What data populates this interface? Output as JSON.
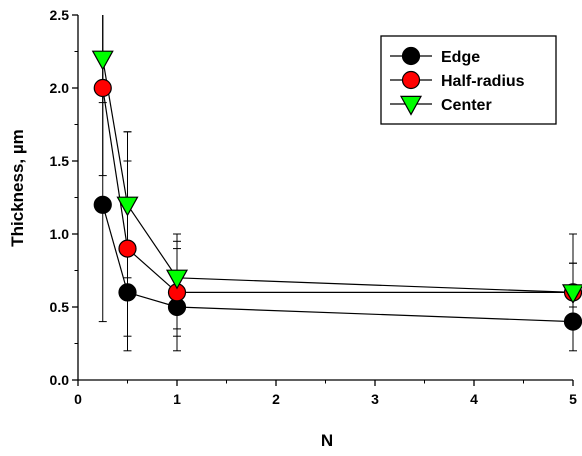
{
  "chart_data": {
    "type": "scatter",
    "title": "",
    "xlabel": "N",
    "ylabel": "Thickness, µm",
    "xlim": [
      0,
      5
    ],
    "ylim": [
      0,
      2.5
    ],
    "xticks": [
      0,
      1,
      2,
      3,
      4,
      5
    ],
    "xtick_labels": [
      "0",
      "1",
      "2",
      "3",
      "4",
      "5"
    ],
    "yticks": [
      0,
      0.5,
      1.0,
      1.5,
      2.0,
      2.5
    ],
    "ytick_labels": [
      "0.0",
      "0.5",
      "1.0",
      "1.5",
      "2.0",
      "2.5"
    ],
    "grid": false,
    "legend_position": "top-right",
    "series": [
      {
        "name": "Edge",
        "marker": "circle",
        "color": "#000000",
        "x": [
          0.25,
          0.5,
          1,
          5
        ],
        "y": [
          1.2,
          0.6,
          0.5,
          0.4
        ],
        "error_low": [
          0.4,
          0.2,
          0.2,
          0.2
        ],
        "error_high": [
          2.5,
          1.5,
          0.9,
          0.8
        ]
      },
      {
        "name": "Half-radius",
        "marker": "circle",
        "color": "#ff0000",
        "x": [
          0.25,
          0.5,
          1,
          5
        ],
        "y": [
          2.0,
          0.9,
          0.6,
          0.6
        ],
        "error_low": [
          1.4,
          0.3,
          0.3,
          0.5
        ],
        "error_high": [
          2.5,
          1.7,
          0.95,
          0.8
        ]
      },
      {
        "name": "Center",
        "marker": "triangle-down",
        "color": "#00ff00",
        "x": [
          0.25,
          0.5,
          1,
          5
        ],
        "y": [
          2.2,
          1.2,
          0.7,
          0.6
        ],
        "error_low": [
          1.9,
          0.7,
          0.35,
          0.5
        ],
        "error_high": [
          2.5,
          1.7,
          1.0,
          1.0
        ]
      }
    ]
  }
}
